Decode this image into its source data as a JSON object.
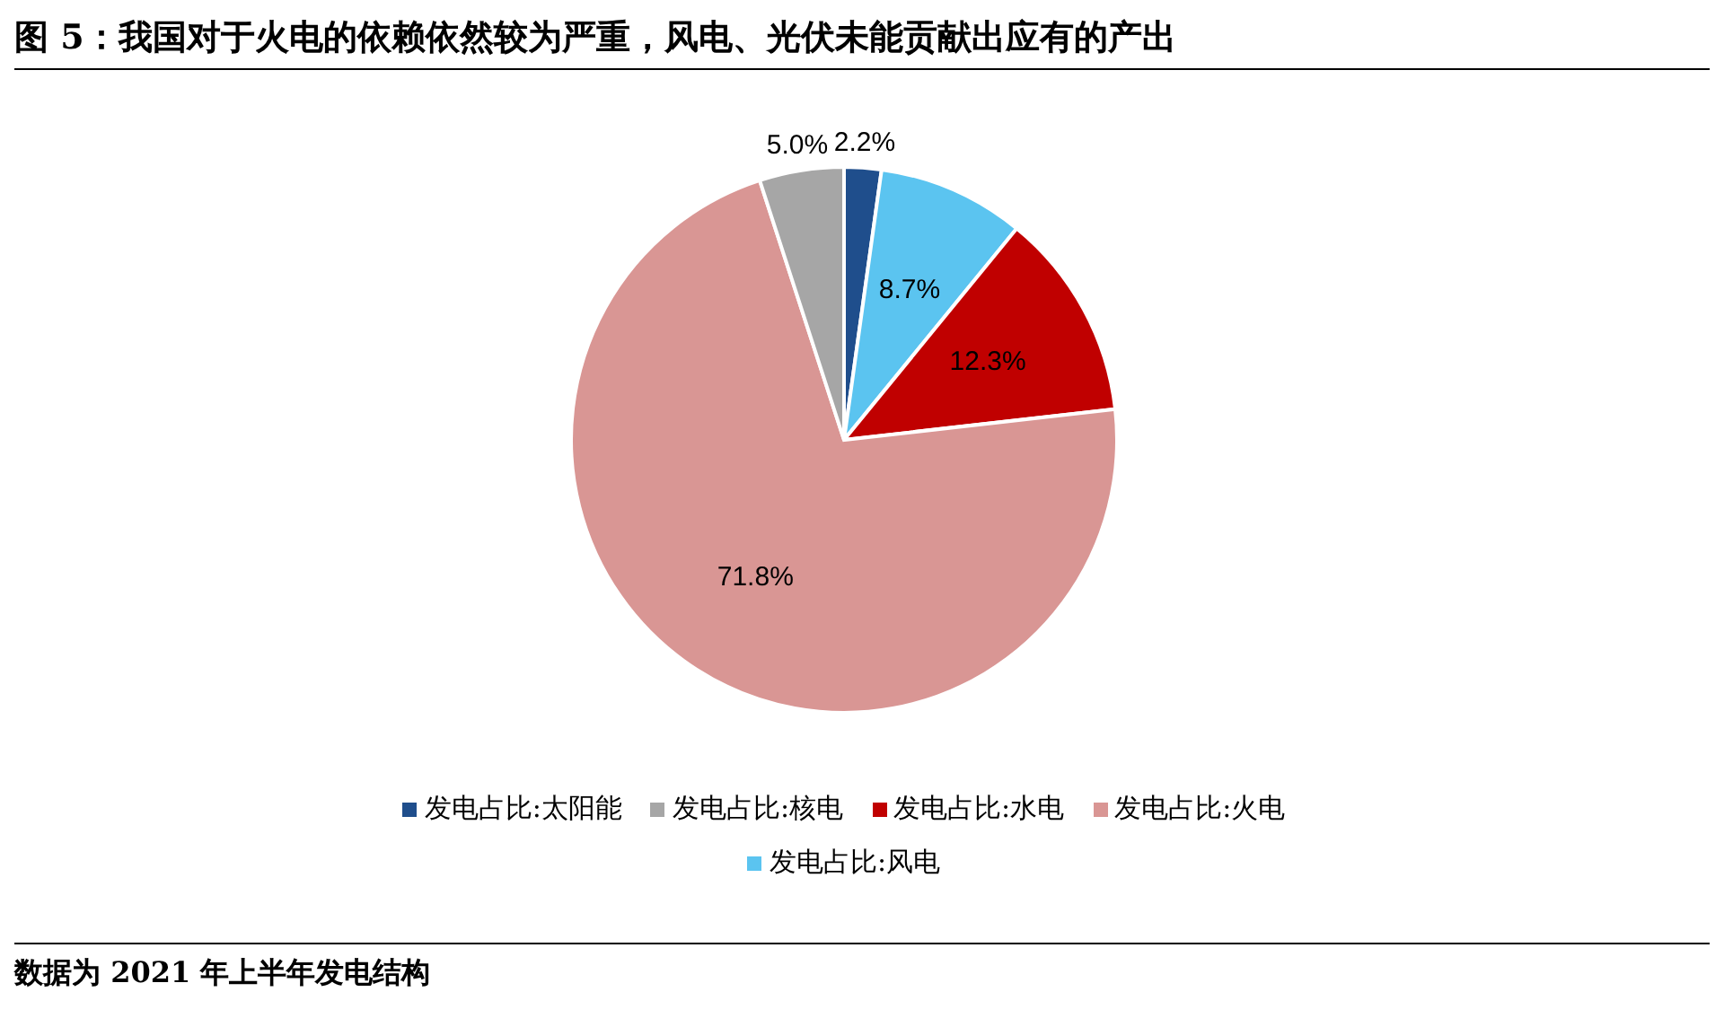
{
  "chart_data": {
    "type": "pie",
    "title": "图 5：我国对于火电的依赖依然较为严重，风电、光伏未能贡献出应有的产出",
    "categories": [
      "发电占比:太阳能",
      "发电占比:风电",
      "发电占比:水电",
      "发电占比:火电",
      "发电占比:核电"
    ],
    "values": [
      2.2,
      8.7,
      12.3,
      71.8,
      5.0
    ],
    "colors": [
      "#1f4e8c",
      "#5bc4f0",
      "#c00000",
      "#d99694",
      "#a6a6a6"
    ],
    "value_labels": [
      "2.2%",
      "8.7%",
      "12.3%",
      "71.8%",
      "5.0%"
    ],
    "legend": "bottom",
    "annotations": [
      "数据为 2021 年上半年发电结构"
    ]
  }
}
